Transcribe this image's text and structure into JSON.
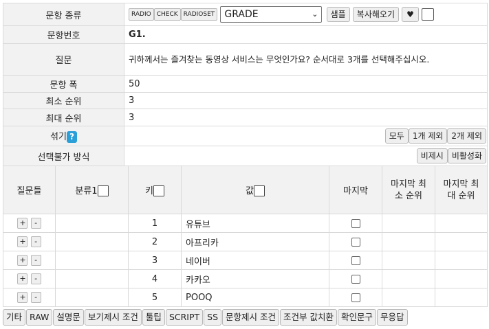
{
  "header": {
    "type_label": "문항 종류",
    "type_buttons": [
      "RADIO",
      "CHECK",
      "RADIOSET"
    ],
    "type_select_value": "GRADE",
    "sample_label": "샘플",
    "copy_label": "복사해오기",
    "heart_glyph": "♥"
  },
  "info": {
    "number_label": "문항번호",
    "number_value": "G1.",
    "question_label": "질문",
    "question_value": "귀하께서는 즐겨찾는 동영상 서비스는 무엇인가요? 순서대로 3개를 선택해주십시오.",
    "width_label": "문항 폭",
    "width_value": "50",
    "min_rank_label": "최소 순위",
    "min_rank_value": "3",
    "max_rank_label": "최대 순위",
    "max_rank_value": "3",
    "shuffle_label": "섞기",
    "help_glyph": "?",
    "shuffle_buttons": [
      "모두",
      "1개 제외",
      "2개 제외"
    ],
    "disable_label": "선택불가 방식",
    "disable_buttons": [
      "비제시",
      "비활성화"
    ]
  },
  "grid": {
    "headers": {
      "questions": "질문들",
      "category": "분류1",
      "key": "키",
      "value": "값",
      "last": "마지막",
      "last_min": "마지막 최소 순위",
      "last_max": "마지막 최대 순위"
    },
    "rows": [
      {
        "key": "1",
        "value": "유튜브"
      },
      {
        "key": "2",
        "value": "아프리카"
      },
      {
        "key": "3",
        "value": "네이버"
      },
      {
        "key": "4",
        "value": "카카오"
      },
      {
        "key": "5",
        "value": "POOQ"
      }
    ],
    "plus": "+",
    "minus": "-"
  },
  "footer": {
    "buttons": [
      "기타",
      "RAW",
      "설명문",
      "보기제시 조건",
      "툴팁",
      "SCRIPT",
      "SS",
      "문항제시 조건",
      "조건부 값치환",
      "확인문구",
      "무응답"
    ]
  }
}
